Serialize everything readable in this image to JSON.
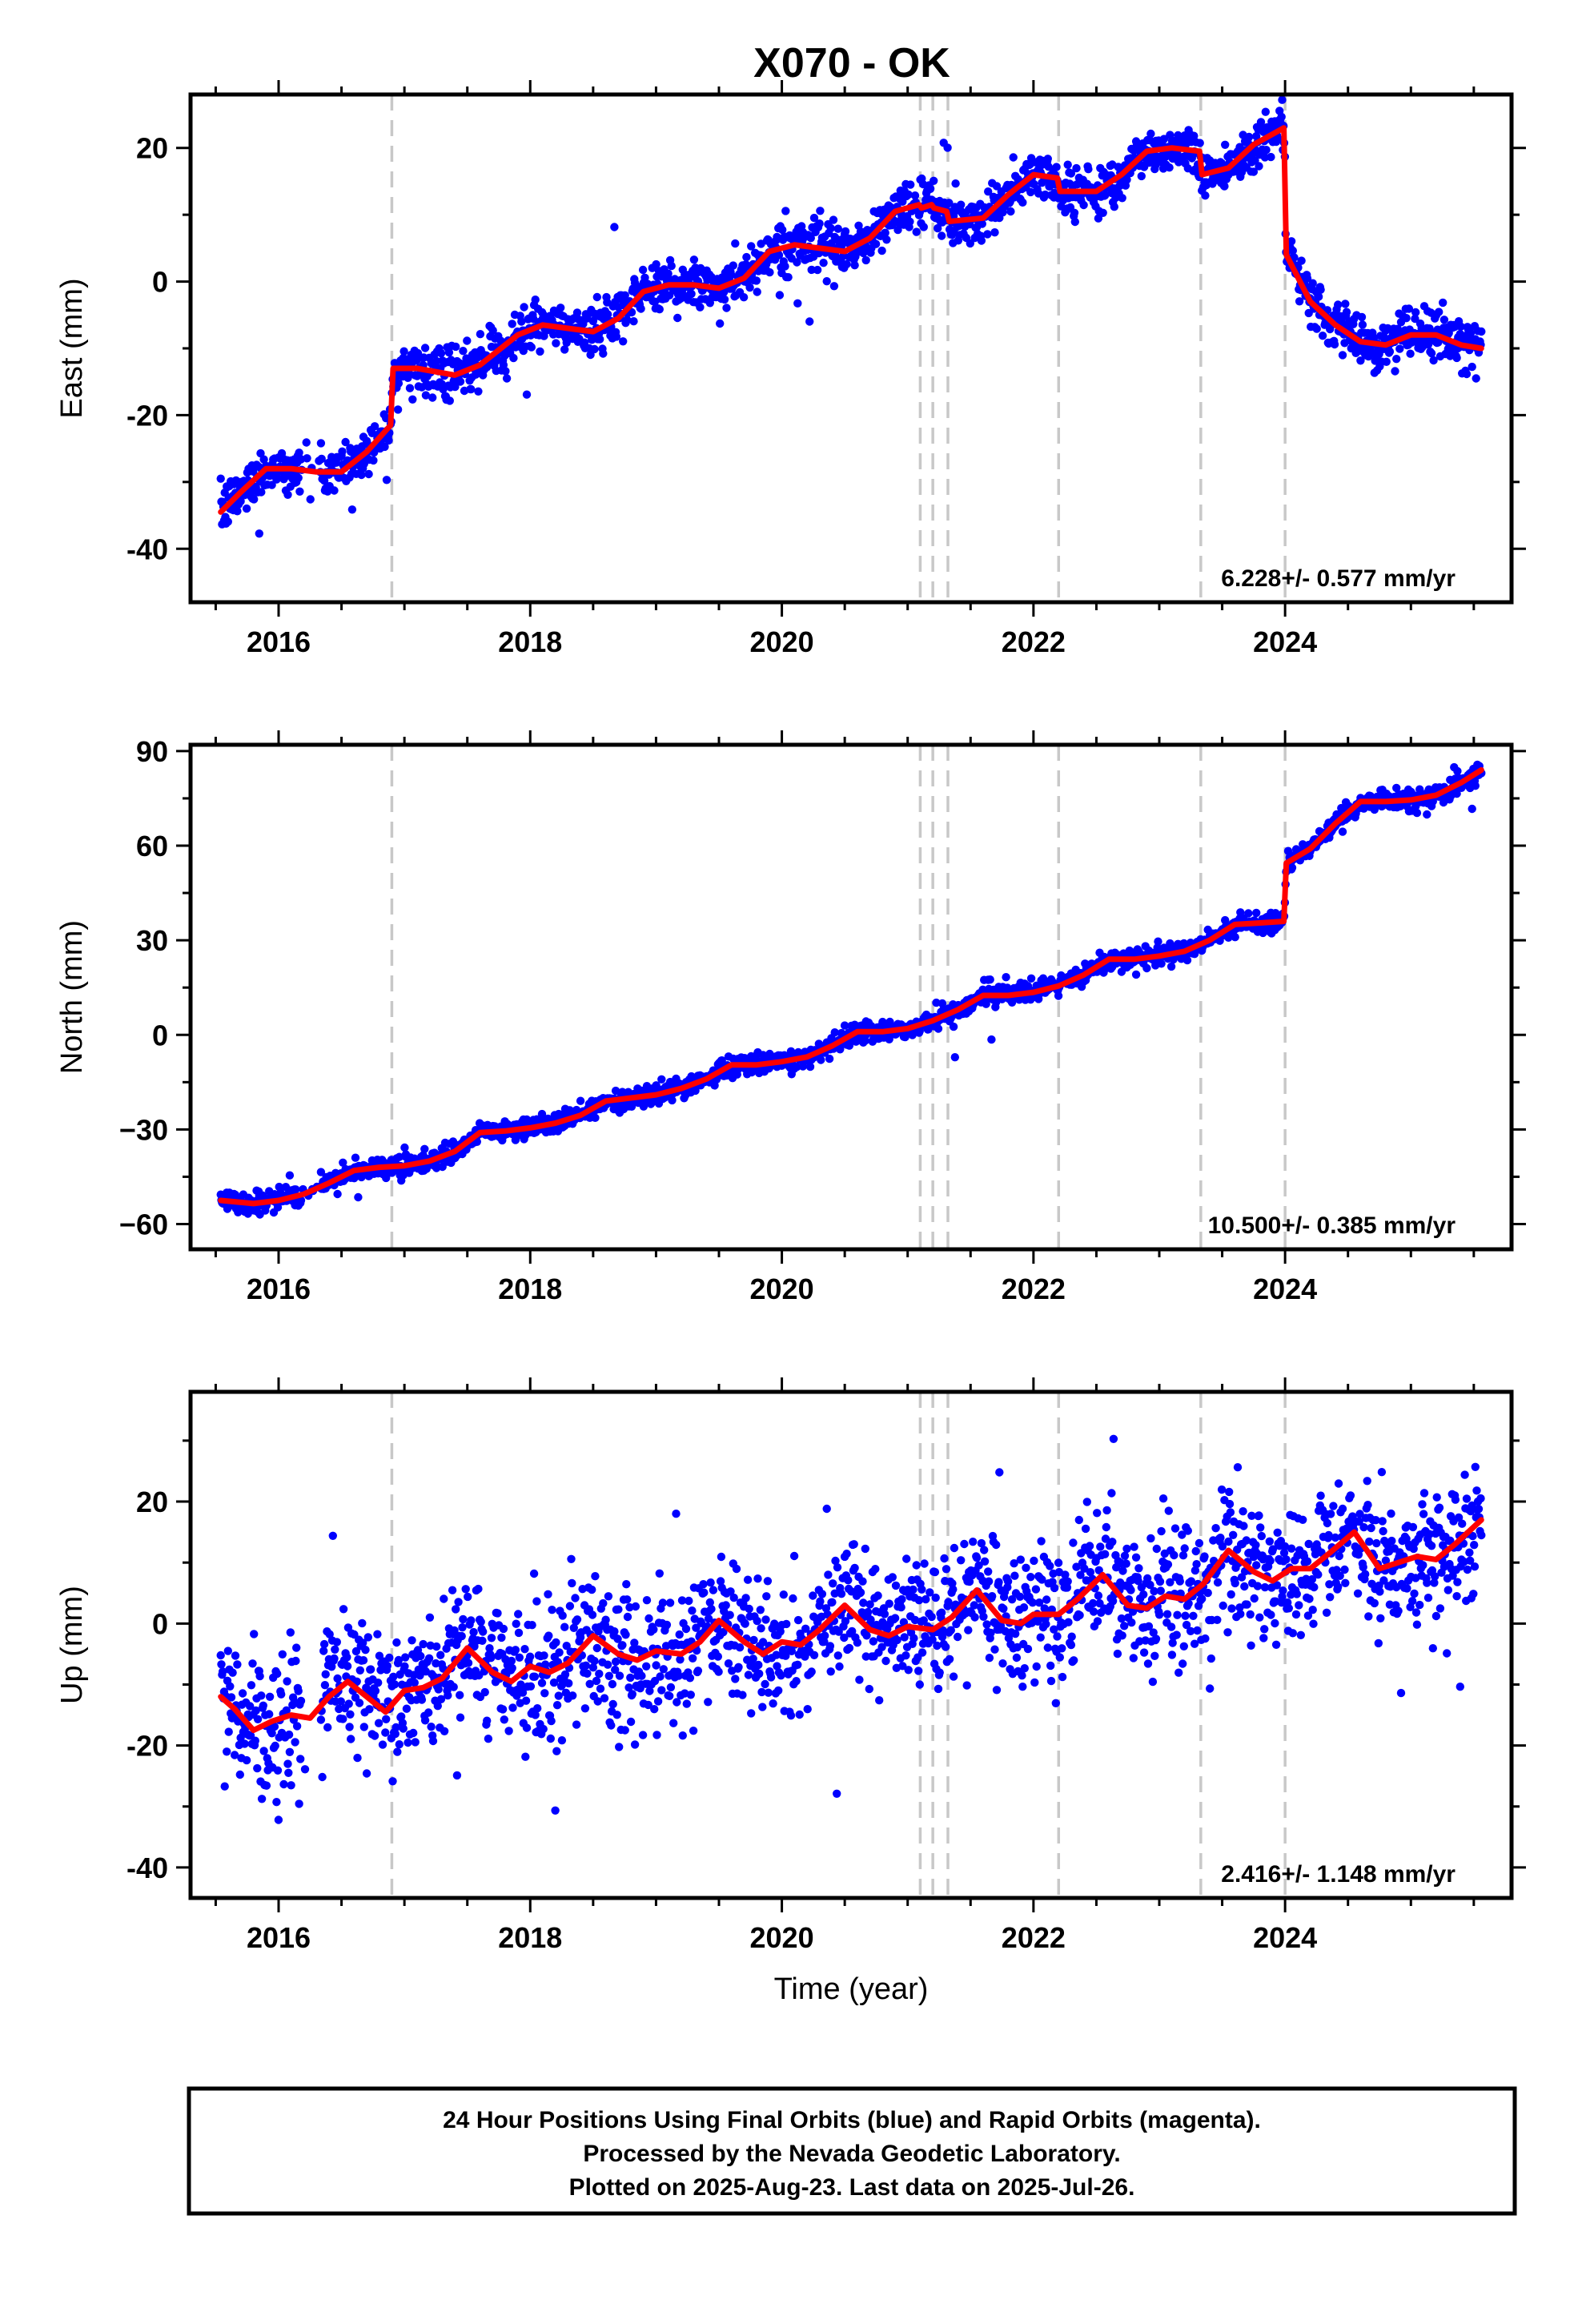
{
  "chart_data": {
    "type": "scatter",
    "title": "X070 - OK",
    "xlabel": "Time (year)",
    "xlim": [
      2015.3,
      2025.8
    ],
    "xticks": [
      2016,
      2018,
      2020,
      2022,
      2024
    ],
    "xtick_labels": [
      "2016",
      "2018",
      "2020",
      "2022",
      "2024"
    ],
    "event_lines": [
      2016.9,
      2021.1,
      2021.2,
      2021.32,
      2022.2,
      2023.33,
      2024.0
    ],
    "colors": {
      "points": "#0000ff",
      "model": "#ff0000",
      "event_lines": "#c8c8c8"
    },
    "panels": [
      {
        "name": "east",
        "ylabel": "East (mm)",
        "ylim": [
          -48,
          28
        ],
        "yticks": [
          -40,
          -20,
          0,
          20
        ],
        "ytick_labels": [
          "-40",
          "-20",
          "0",
          "20"
        ],
        "rate": "6.228+/- 0.577 mm/yr",
        "spread": 1.8,
        "model": [
          [
            2015.54,
            -34.5
          ],
          [
            2015.7,
            -31.5
          ],
          [
            2015.9,
            -28
          ],
          [
            2016.1,
            -28
          ],
          [
            2016.3,
            -28.5
          ],
          [
            2016.5,
            -28.5
          ],
          [
            2016.7,
            -25.5
          ],
          [
            2016.89,
            -21.5
          ],
          [
            2016.91,
            -13
          ],
          [
            2017.1,
            -13
          ],
          [
            2017.4,
            -14
          ],
          [
            2017.6,
            -12.5
          ],
          [
            2017.9,
            -8
          ],
          [
            2018.1,
            -6.5
          ],
          [
            2018.3,
            -7
          ],
          [
            2018.5,
            -7.5
          ],
          [
            2018.7,
            -5.5
          ],
          [
            2018.9,
            -1.5
          ],
          [
            2019.1,
            -0.5
          ],
          [
            2019.3,
            -0.5
          ],
          [
            2019.5,
            -1
          ],
          [
            2019.7,
            0.5
          ],
          [
            2019.9,
            4.5
          ],
          [
            2020.1,
            5.5
          ],
          [
            2020.3,
            5
          ],
          [
            2020.5,
            4.5
          ],
          [
            2020.7,
            6.5
          ],
          [
            2020.9,
            10.5
          ],
          [
            2021.09,
            11.5
          ],
          [
            2021.11,
            11
          ],
          [
            2021.19,
            11.5
          ],
          [
            2021.21,
            11
          ],
          [
            2021.31,
            10.5
          ],
          [
            2021.33,
            9
          ],
          [
            2021.6,
            9.5
          ],
          [
            2021.8,
            13
          ],
          [
            2022.0,
            16
          ],
          [
            2022.19,
            15.5
          ],
          [
            2022.21,
            13.5
          ],
          [
            2022.5,
            13.5
          ],
          [
            2022.7,
            16
          ],
          [
            2022.9,
            19.5
          ],
          [
            2023.1,
            20
          ],
          [
            2023.32,
            19.5
          ],
          [
            2023.34,
            16
          ],
          [
            2023.55,
            17
          ],
          [
            2023.75,
            20.5
          ],
          [
            2023.99,
            23
          ],
          [
            2024.01,
            4
          ],
          [
            2024.2,
            -3
          ],
          [
            2024.4,
            -6.5
          ],
          [
            2024.6,
            -9
          ],
          [
            2024.8,
            -9.5
          ],
          [
            2025.0,
            -8
          ],
          [
            2025.2,
            -8
          ],
          [
            2025.4,
            -9.5
          ],
          [
            2025.56,
            -10
          ]
        ]
      },
      {
        "name": "north",
        "ylabel": "North (mm)",
        "ylim": [
          -68,
          92
        ],
        "yticks": [
          -60,
          -30,
          0,
          30,
          60,
          90
        ],
        "ytick_labels": [
          "−60",
          "−30",
          "0",
          "30",
          "60",
          "90"
        ],
        "rate": "10.500+/- 0.385 mm/yr",
        "spread": 1.6,
        "model": [
          [
            2015.54,
            -52.5
          ],
          [
            2015.8,
            -53.5
          ],
          [
            2016.0,
            -52.5
          ],
          [
            2016.2,
            -50.5
          ],
          [
            2016.4,
            -47
          ],
          [
            2016.6,
            -43
          ],
          [
            2016.8,
            -42
          ],
          [
            2017.0,
            -41.5
          ],
          [
            2017.2,
            -40
          ],
          [
            2017.4,
            -37
          ],
          [
            2017.6,
            -31
          ],
          [
            2017.8,
            -30.5
          ],
          [
            2018.0,
            -29.5
          ],
          [
            2018.2,
            -28
          ],
          [
            2018.4,
            -25.5
          ],
          [
            2018.6,
            -21
          ],
          [
            2018.8,
            -20
          ],
          [
            2019.0,
            -19
          ],
          [
            2019.2,
            -17
          ],
          [
            2019.4,
            -14
          ],
          [
            2019.6,
            -9.5
          ],
          [
            2019.8,
            -9.5
          ],
          [
            2020.0,
            -8.5
          ],
          [
            2020.2,
            -7
          ],
          [
            2020.4,
            -3.5
          ],
          [
            2020.6,
            1
          ],
          [
            2020.8,
            1
          ],
          [
            2021.0,
            2
          ],
          [
            2021.2,
            4.5
          ],
          [
            2021.4,
            8
          ],
          [
            2021.6,
            12.5
          ],
          [
            2021.8,
            12.5
          ],
          [
            2022.0,
            13.5
          ],
          [
            2022.2,
            15.5
          ],
          [
            2022.4,
            19
          ],
          [
            2022.6,
            24
          ],
          [
            2022.8,
            24
          ],
          [
            2023.0,
            25
          ],
          [
            2023.2,
            26.5
          ],
          [
            2023.4,
            30
          ],
          [
            2023.6,
            35
          ],
          [
            2023.8,
            35.5
          ],
          [
            2023.99,
            36
          ],
          [
            2024.01,
            54.5
          ],
          [
            2024.2,
            59
          ],
          [
            2024.4,
            67
          ],
          [
            2024.6,
            74
          ],
          [
            2024.8,
            74
          ],
          [
            2025.0,
            74.5
          ],
          [
            2025.2,
            76
          ],
          [
            2025.4,
            80
          ],
          [
            2025.56,
            84
          ]
        ]
      },
      {
        "name": "up",
        "ylabel": "Up (mm)",
        "ylim": [
          -45,
          38
        ],
        "yticks": [
          -40,
          -20,
          0,
          20
        ],
        "ytick_labels": [
          "-40",
          "-20",
          "0",
          "20"
        ],
        "rate": "2.416+/- 1.148 mm/yr",
        "spread": 5.5,
        "model": [
          [
            2015.54,
            -12
          ],
          [
            2015.65,
            -14
          ],
          [
            2015.8,
            -17.5
          ],
          [
            2015.95,
            -16
          ],
          [
            2016.1,
            -15
          ],
          [
            2016.25,
            -15.5
          ],
          [
            2016.4,
            -12
          ],
          [
            2016.55,
            -9.5
          ],
          [
            2016.7,
            -12
          ],
          [
            2016.85,
            -14.5
          ],
          [
            2017.0,
            -11
          ],
          [
            2017.15,
            -10.5
          ],
          [
            2017.3,
            -9
          ],
          [
            2017.5,
            -4
          ],
          [
            2017.7,
            -8
          ],
          [
            2017.85,
            -9.5
          ],
          [
            2018.0,
            -7
          ],
          [
            2018.15,
            -8
          ],
          [
            2018.3,
            -6.5
          ],
          [
            2018.5,
            -2
          ],
          [
            2018.7,
            -5
          ],
          [
            2018.85,
            -6
          ],
          [
            2019.0,
            -4.5
          ],
          [
            2019.2,
            -5
          ],
          [
            2019.35,
            -3
          ],
          [
            2019.5,
            0.5
          ],
          [
            2019.7,
            -3
          ],
          [
            2019.85,
            -5
          ],
          [
            2020.0,
            -3
          ],
          [
            2020.15,
            -3.5
          ],
          [
            2020.3,
            -1
          ],
          [
            2020.5,
            3
          ],
          [
            2020.7,
            -1
          ],
          [
            2020.85,
            -2
          ],
          [
            2021.0,
            -0.5
          ],
          [
            2021.2,
            -1
          ],
          [
            2021.35,
            1
          ],
          [
            2021.55,
            5.5
          ],
          [
            2021.75,
            0.5
          ],
          [
            2021.9,
            0
          ],
          [
            2022.0,
            1.5
          ],
          [
            2022.2,
            1.5
          ],
          [
            2022.35,
            4
          ],
          [
            2022.55,
            8
          ],
          [
            2022.75,
            3
          ],
          [
            2022.9,
            2.5
          ],
          [
            2023.05,
            4.5
          ],
          [
            2023.2,
            4
          ],
          [
            2023.35,
            6.5
          ],
          [
            2023.55,
            12
          ],
          [
            2023.75,
            8.5
          ],
          [
            2023.9,
            7
          ],
          [
            2024.05,
            9
          ],
          [
            2024.2,
            9
          ],
          [
            2024.35,
            11.5
          ],
          [
            2024.55,
            15
          ],
          [
            2024.75,
            9
          ],
          [
            2024.9,
            10
          ],
          [
            2025.05,
            11
          ],
          [
            2025.2,
            10.5
          ],
          [
            2025.35,
            13
          ],
          [
            2025.56,
            17
          ]
        ]
      }
    ]
  },
  "footer": {
    "line1": "24 Hour Positions Using Final Orbits (blue) and Rapid Orbits (magenta).",
    "line2": "Processed by the Nevada Geodetic Laboratory.",
    "line3": "Plotted on 2025-Aug-23. Last data on 2025-Jul-26."
  }
}
